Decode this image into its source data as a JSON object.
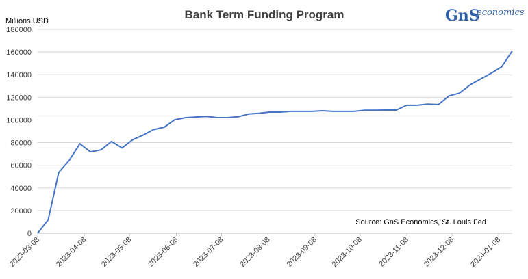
{
  "chart_data": {
    "type": "line",
    "title": "Bank Term Funding Program",
    "ylabel": "Millions USD",
    "ylim": [
      0,
      180000
    ],
    "yticks": [
      0,
      20000,
      40000,
      60000,
      80000,
      100000,
      120000,
      140000,
      160000,
      180000
    ],
    "xtick_labels": [
      "2023-03-08",
      "2023-04-08",
      "2023-05-08",
      "2023-06-08",
      "2023-07-08",
      "2023-08-08",
      "2023-09-08",
      "2023-10-08",
      "2023-11-08",
      "2023-12-08",
      "2024-01-08"
    ],
    "xrange": [
      "2023-03-08",
      "2024-01-17"
    ],
    "grid": true,
    "annotation": "Source: GnS Economics, St. Louis Fed",
    "series": [
      {
        "color": "#4472c4",
        "x": [
          "2023-03-08",
          "2023-03-15",
          "2023-03-22",
          "2023-03-29",
          "2023-04-05",
          "2023-04-12",
          "2023-04-19",
          "2023-04-26",
          "2023-05-03",
          "2023-05-10",
          "2023-05-17",
          "2023-05-24",
          "2023-05-31",
          "2023-06-07",
          "2023-06-14",
          "2023-06-21",
          "2023-06-28",
          "2023-07-05",
          "2023-07-12",
          "2023-07-19",
          "2023-07-26",
          "2023-08-02",
          "2023-08-09",
          "2023-08-16",
          "2023-08-23",
          "2023-08-30",
          "2023-09-06",
          "2023-09-13",
          "2023-09-20",
          "2023-09-27",
          "2023-10-04",
          "2023-10-11",
          "2023-10-18",
          "2023-10-25",
          "2023-11-01",
          "2023-11-08",
          "2023-11-15",
          "2023-11-22",
          "2023-11-29",
          "2023-12-06",
          "2023-12-13",
          "2023-12-20",
          "2023-12-27",
          "2024-01-03",
          "2024-01-10",
          "2024-01-17"
        ],
        "values": [
          0,
          11943,
          53669,
          64403,
          79000,
          71800,
          73600,
          81000,
          75300,
          82500,
          86600,
          91500,
          93600,
          100200,
          102000,
          102600,
          103100,
          102100,
          102100,
          102800,
          105200,
          105900,
          106900,
          106900,
          107600,
          107600,
          107600,
          108100,
          107600,
          107600,
          107600,
          108600,
          108600,
          108700,
          108700,
          113000,
          113000,
          114000,
          113600,
          121200,
          123700,
          131000,
          136200,
          141300,
          147000,
          161000
        ]
      }
    ]
  },
  "logo": {
    "mark": "GnS",
    "word": "economics"
  }
}
